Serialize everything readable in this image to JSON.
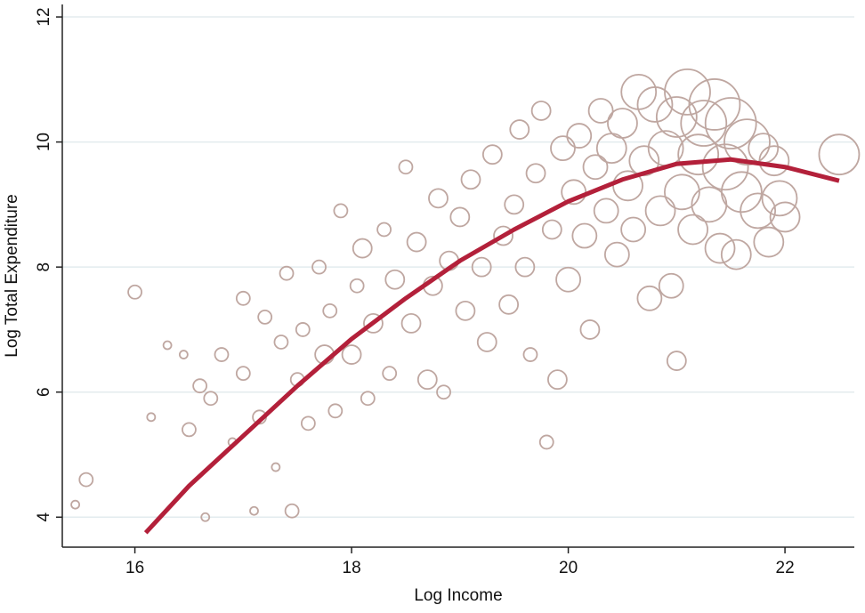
{
  "chart_data": {
    "type": "scatter",
    "x_label": "Log Income",
    "y_label": "Log Total Expenditure",
    "xlim": [
      15.33,
      22.64
    ],
    "ylim": [
      3.52,
      12.2
    ],
    "xticks": [
      16,
      18,
      20,
      22
    ],
    "yticks": [
      4,
      6,
      8,
      10,
      12
    ],
    "grid": true,
    "series": [
      {
        "type": "scatter",
        "color": "#bfa7a1",
        "x": [
          15.45,
          15.55,
          16.0,
          16.15,
          16.3,
          16.45,
          16.5,
          16.6,
          16.65,
          16.7,
          16.8,
          16.9,
          17.0,
          17.0,
          17.1,
          17.15,
          17.2,
          17.3,
          17.35,
          17.4,
          17.45,
          17.5,
          17.55,
          17.6,
          17.7,
          17.75,
          17.8,
          17.85,
          17.9,
          18.0,
          18.05,
          18.1,
          18.15,
          18.2,
          18.3,
          18.35,
          18.4,
          18.5,
          18.55,
          18.6,
          18.7,
          18.75,
          18.8,
          18.85,
          18.9,
          19.0,
          19.05,
          19.1,
          19.2,
          19.25,
          19.3,
          19.4,
          19.45,
          19.5,
          19.55,
          19.6,
          19.65,
          19.7,
          19.75,
          19.8,
          19.85,
          19.9,
          19.95,
          20.0,
          20.05,
          20.1,
          20.15,
          20.2,
          20.25,
          20.3,
          20.35,
          20.4,
          20.45,
          20.5,
          20.55,
          20.6,
          20.65,
          20.7,
          20.75,
          20.8,
          20.85,
          20.9,
          20.95,
          21.0,
          21.0,
          21.05,
          21.1,
          21.15,
          21.2,
          21.25,
          21.3,
          21.35,
          21.4,
          21.45,
          21.5,
          21.55,
          21.6,
          21.65,
          21.75,
          21.8,
          21.85,
          21.9,
          21.95,
          22.0,
          22.5
        ],
        "values": [
          4.2,
          4.6,
          7.6,
          5.6,
          6.75,
          6.6,
          5.4,
          6.1,
          4.0,
          5.9,
          6.6,
          5.2,
          7.5,
          6.3,
          4.1,
          5.6,
          7.2,
          4.8,
          6.8,
          7.9,
          4.1,
          6.2,
          7.0,
          5.5,
          8.0,
          6.6,
          7.3,
          5.7,
          8.9,
          6.6,
          7.7,
          8.3,
          5.9,
          7.1,
          8.6,
          6.3,
          7.8,
          9.6,
          7.1,
          8.4,
          6.2,
          7.7,
          9.1,
          6.0,
          8.1,
          8.8,
          7.3,
          9.4,
          8.0,
          6.8,
          9.8,
          8.5,
          7.4,
          9.0,
          10.2,
          8.0,
          6.6,
          9.5,
          10.5,
          5.2,
          8.6,
          6.2,
          9.9,
          7.8,
          9.2,
          10.1,
          8.5,
          7.0,
          9.6,
          10.5,
          8.9,
          9.9,
          8.2,
          10.3,
          9.3,
          8.6,
          10.8,
          9.7,
          7.5,
          10.6,
          8.9,
          9.9,
          7.7,
          10.4,
          6.5,
          9.2,
          10.8,
          8.6,
          9.8,
          10.3,
          9.0,
          10.6,
          8.3,
          9.6,
          10.3,
          8.2,
          9.2,
          10.0,
          8.9,
          9.9,
          8.4,
          9.7,
          9.1,
          8.8,
          9.8
        ],
        "sizes": [
          1,
          2,
          2,
          1,
          1,
          1,
          2,
          2,
          1,
          2,
          2,
          1,
          2,
          2,
          1,
          2,
          2,
          1,
          2,
          2,
          2,
          2,
          2,
          2,
          2,
          3,
          2,
          2,
          2,
          3,
          2,
          3,
          2,
          3,
          2,
          2,
          3,
          2,
          3,
          3,
          3,
          3,
          3,
          2,
          3,
          3,
          3,
          3,
          3,
          3,
          3,
          3,
          3,
          3,
          3,
          3,
          2,
          3,
          3,
          2,
          3,
          3,
          4,
          4,
          4,
          4,
          4,
          3,
          4,
          4,
          4,
          5,
          4,
          5,
          5,
          4,
          6,
          5,
          4,
          6,
          5,
          6,
          4,
          7,
          3,
          6,
          8,
          5,
          7,
          8,
          6,
          9,
          5,
          8,
          9,
          5,
          7,
          8,
          6,
          5,
          5,
          5,
          6,
          5,
          7
        ]
      },
      {
        "type": "line",
        "color": "#b3203a",
        "x": [
          16.1,
          16.5,
          17.0,
          17.5,
          18.0,
          18.5,
          19.0,
          19.5,
          20.0,
          20.5,
          21.0,
          21.5,
          22.0,
          22.5
        ],
        "values": [
          3.75,
          4.5,
          5.3,
          6.1,
          6.85,
          7.5,
          8.1,
          8.6,
          9.05,
          9.4,
          9.65,
          9.72,
          9.6,
          9.38
        ]
      }
    ]
  }
}
